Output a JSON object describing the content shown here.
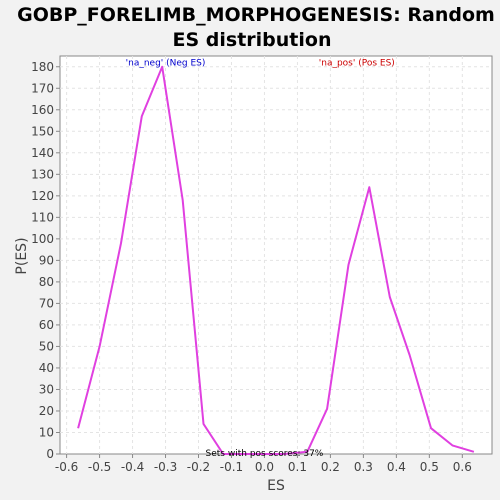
{
  "chart_data": {
    "type": "line",
    "title_lines": [
      "GOBP_FORELIMB_MORPHOGENESIS: Random",
      "ES distribution"
    ],
    "xlabel": "ES",
    "ylabel": "P(ES)",
    "xlim": [
      -0.62,
      0.69
    ],
    "ylim": [
      0,
      185
    ],
    "xticks": [
      -0.6,
      -0.5,
      -0.4,
      -0.3,
      -0.2,
      -0.1,
      0.0,
      0.1,
      0.2,
      0.3,
      0.4,
      0.5,
      0.6
    ],
    "xtick_labels": [
      "-0.6",
      "-0.5",
      "-0.4",
      "-0.3",
      "-0.2",
      "-0.1",
      "0.0",
      "0.1",
      "0.2",
      "0.3",
      "0.4",
      "0.5",
      "0.6"
    ],
    "yticks": [
      0,
      10,
      20,
      30,
      40,
      50,
      60,
      70,
      80,
      90,
      100,
      110,
      120,
      130,
      140,
      150,
      160,
      170,
      180
    ],
    "grid": true,
    "series": [
      {
        "color": "#e040e0",
        "x": [
          -0.565,
          -0.5,
          -0.435,
          -0.372,
          -0.31,
          -0.248,
          -0.185,
          -0.125,
          -0.06,
          0.0,
          0.06,
          0.13,
          0.19,
          0.255,
          0.318,
          0.38,
          0.44,
          0.505,
          0.57,
          0.635
        ],
        "y": [
          12,
          50,
          98,
          157,
          180,
          118,
          14,
          0,
          0,
          0,
          0,
          1,
          21,
          88,
          124,
          73,
          46,
          12,
          4,
          1
        ]
      }
    ],
    "annotations": [
      {
        "text": "'na_neg' (Neg ES)",
        "color": "#0000cc",
        "x": -0.3,
        "y": 182
      },
      {
        "text": "'na_pos' (Pos ES)",
        "color": "#cc0000",
        "x": 0.28,
        "y": 182
      },
      {
        "text": "Sets with pos scores: 37%",
        "color": "#000000",
        "x": 0.0,
        "y": 0.5
      }
    ]
  }
}
